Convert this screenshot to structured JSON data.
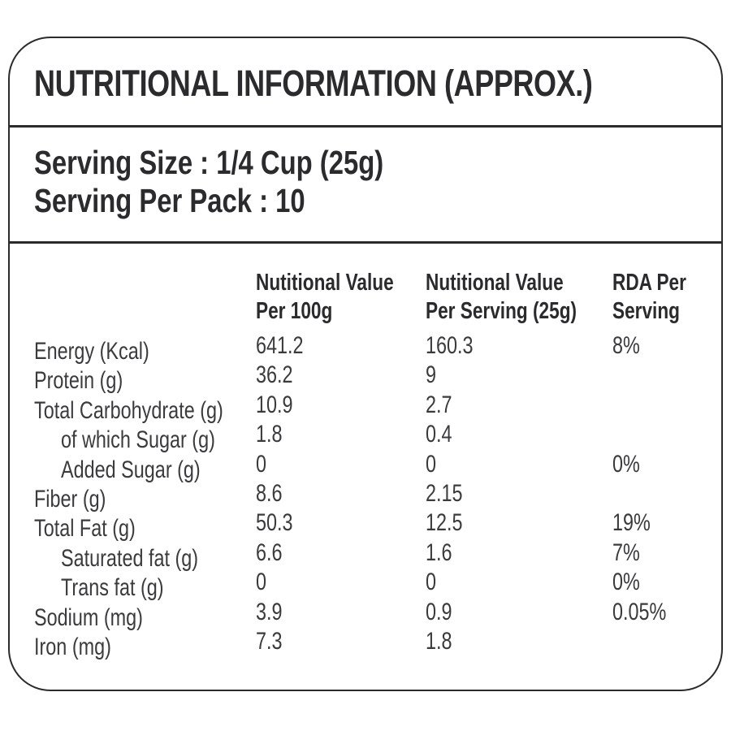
{
  "header": {
    "title": "NUTRITIONAL INFORMATION (APPROX.)"
  },
  "serving": {
    "size_label": "Serving Size : 1/4 Cup (25g)",
    "per_pack_label": "Serving Per Pack : 10"
  },
  "table": {
    "columns": [
      {
        "line1": "Nutitional Value",
        "line2": "Per 100g"
      },
      {
        "line1": "Nutitional Value",
        "line2": "Per Serving (25g)"
      },
      {
        "line1": "RDA Per",
        "line2": "Serving"
      }
    ],
    "rows": [
      {
        "label": "Energy (Kcal)",
        "per_100g": "641.2",
        "per_serving": "160.3",
        "rda": "8%"
      },
      {
        "label": "Protein (g)",
        "per_100g": "36.2",
        "per_serving": "9",
        "rda": ""
      },
      {
        "label": "Total Carbohydrate (g)",
        "per_100g": "10.9",
        "per_serving": "2.7",
        "rda": ""
      },
      {
        "label": "of which Sugar (g)",
        "per_100g": "1.8",
        "per_serving": "0.4",
        "rda": ""
      },
      {
        "label": "Added Sugar (g)",
        "per_100g": "0",
        "per_serving": "0",
        "rda": "0%"
      },
      {
        "label": "Fiber (g)",
        "per_100g": "8.6",
        "per_serving": "2.15",
        "rda": ""
      },
      {
        "label": "Total Fat (g)",
        "per_100g": "50.3",
        "per_serving": "12.5",
        "rda": "19%"
      },
      {
        "label": "Saturated fat (g)",
        "per_100g": "6.6",
        "per_serving": "1.6",
        "rda": "7%"
      },
      {
        "label": "Trans fat (g)",
        "per_100g": "0",
        "per_serving": "0",
        "rda": "0%"
      },
      {
        "label": "Sodium (mg)",
        "per_100g": "3.9",
        "per_serving": "0.9",
        "rda": "0.05%"
      },
      {
        "label": "Iron (mg)",
        "per_100g": "7.3",
        "per_serving": "1.8",
        "rda": ""
      }
    ]
  },
  "colors": {
    "text_bold": "#2b2a2c",
    "text_regular": "#3b3a3c",
    "border": "#2b2a2c",
    "background": "#ffffff"
  }
}
